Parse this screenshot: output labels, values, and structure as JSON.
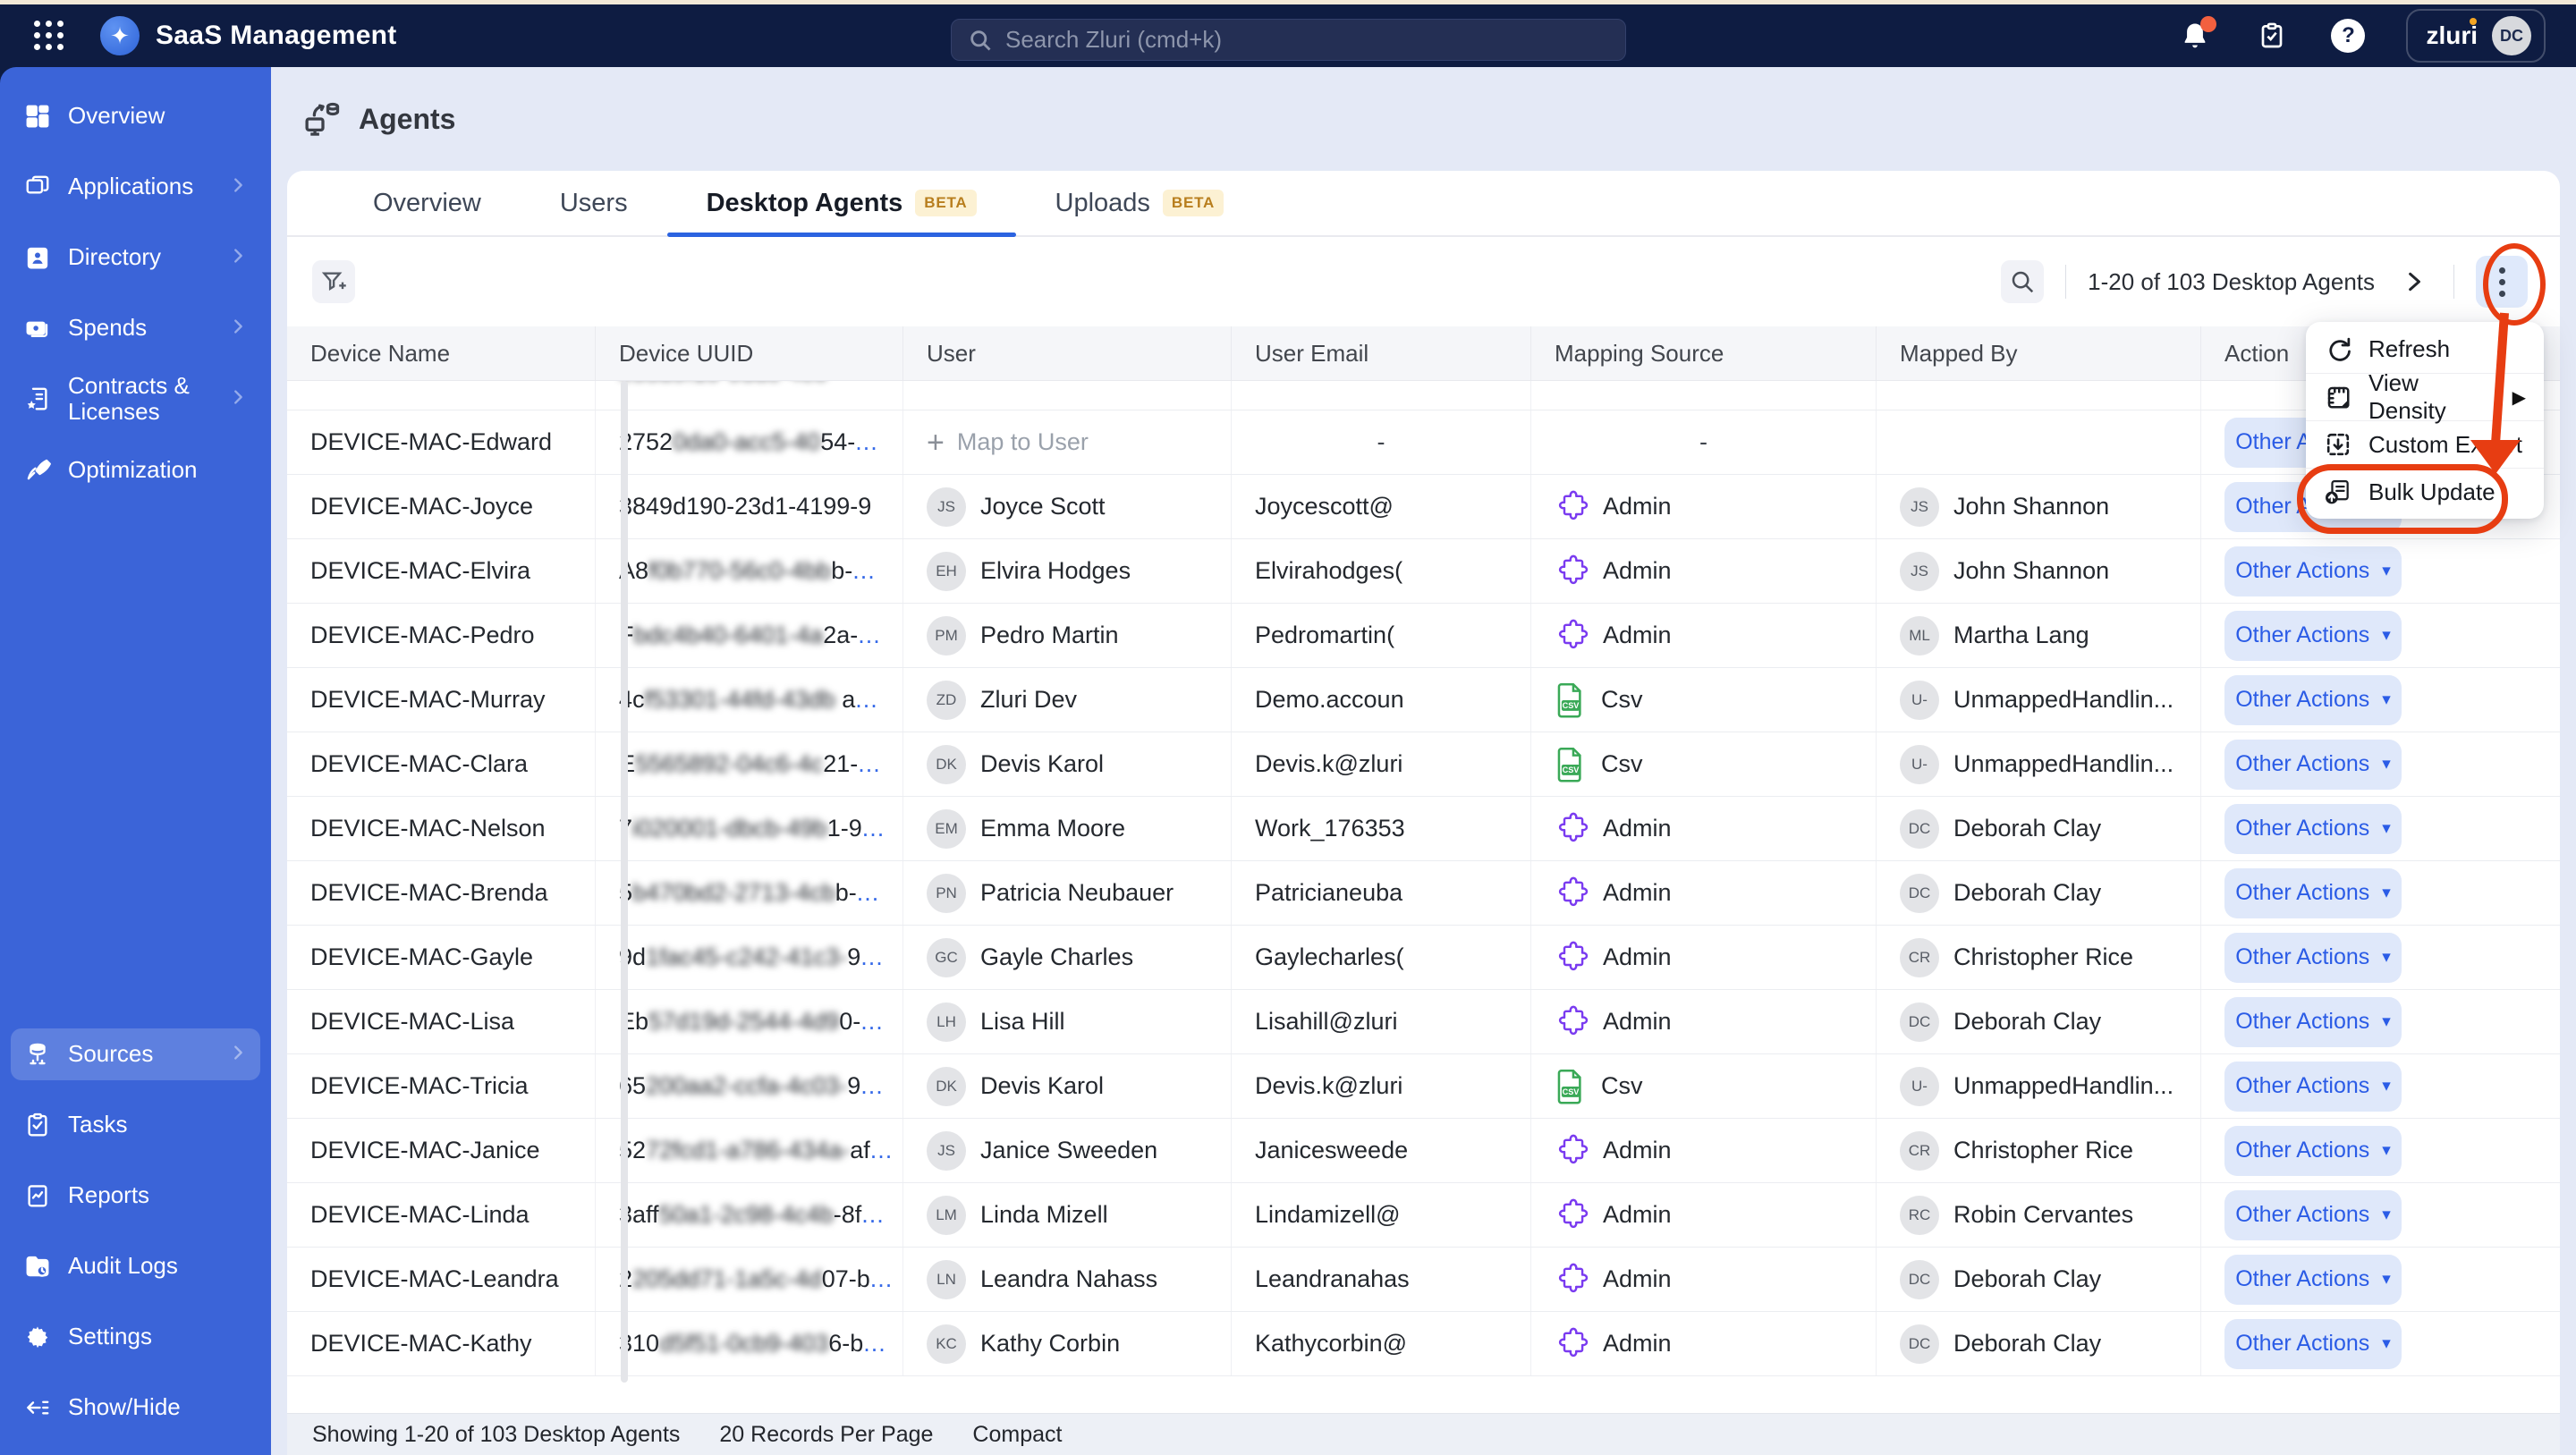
{
  "topbar": {
    "title": "SaaS Management",
    "search_placeholder": "Search Zluri (cmd+k)",
    "org_name": "zluri",
    "avatar_initials": "DC"
  },
  "sidebar": {
    "top_items": [
      {
        "label": "Overview",
        "icon": "overview-icon",
        "chevron": false,
        "active": false
      },
      {
        "label": "Applications",
        "icon": "applications-icon",
        "chevron": true,
        "active": false
      },
      {
        "label": "Directory",
        "icon": "directory-icon",
        "chevron": true,
        "active": false
      },
      {
        "label": "Spends",
        "icon": "spends-icon",
        "chevron": true,
        "active": false
      },
      {
        "label": "Contracts & Licenses",
        "icon": "contracts-icon",
        "chevron": true,
        "active": false
      },
      {
        "label": "Optimization",
        "icon": "optimization-icon",
        "chevron": false,
        "active": false
      }
    ],
    "bottom_items": [
      {
        "label": "Sources",
        "icon": "sources-icon",
        "chevron": true,
        "active": true
      },
      {
        "label": "Tasks",
        "icon": "tasks-icon",
        "chevron": false,
        "active": false
      },
      {
        "label": "Reports",
        "icon": "reports-icon",
        "chevron": false,
        "active": false
      },
      {
        "label": "Audit Logs",
        "icon": "audit-logs-icon",
        "chevron": false,
        "active": false
      },
      {
        "label": "Settings",
        "icon": "settings-icon",
        "chevron": false,
        "active": false
      },
      {
        "label": "Show/Hide",
        "icon": "show-hide-icon",
        "chevron": false,
        "active": false
      }
    ]
  },
  "page": {
    "title": "Agents"
  },
  "tabs": [
    {
      "label": "Overview",
      "beta": false,
      "active": false
    },
    {
      "label": "Users",
      "beta": false,
      "active": false
    },
    {
      "label": "Desktop Agents",
      "beta": true,
      "active": true
    },
    {
      "label": "Uploads",
      "beta": true,
      "active": false
    }
  ],
  "beta_label": "BETA",
  "toolbar": {
    "pagination": "1-20 of 103 Desktop Agents"
  },
  "context_menu": {
    "items": [
      {
        "label": "Refresh",
        "icon": "refresh-icon",
        "submenu": false,
        "highlighted": false
      },
      {
        "label": "View Density",
        "icon": "view-density-icon",
        "submenu": true,
        "highlighted": false
      },
      {
        "label": "Custom Export",
        "icon": "custom-export-icon",
        "submenu": false,
        "highlighted": false
      },
      {
        "label": "Bulk Update",
        "icon": "bulk-update-icon",
        "submenu": false,
        "highlighted": true
      }
    ]
  },
  "table": {
    "columns": [
      "Device Name",
      "Device UUID",
      "User",
      "User Email",
      "Mapping Source",
      "Mapped By",
      "Action"
    ],
    "action_label": "Other Actions",
    "map_to_user_label": "Map to User",
    "rows": [
      {
        "partial": true,
        "device": "",
        "uuid": {
          "pre": "",
          "blur": "e55d9f10-93dc-4c6",
          "post": "",
          "dots": false
        },
        "user": null,
        "email": "",
        "mapping": {
          "kind": "none",
          "label": ""
        },
        "mapped": null,
        "action": false
      },
      {
        "partial": false,
        "device": "DEVICE-MAC-Edward",
        "uuid": {
          "pre": "2752",
          "blur": "0da0-acc5-40",
          "post": "54-",
          "dots": true
        },
        "user": {
          "kind": "map"
        },
        "email": "-",
        "mapping": {
          "kind": "dash",
          "label": "-"
        },
        "mapped": null,
        "action": true
      },
      {
        "partial": false,
        "device": "DEVICE-MAC-Joyce",
        "uuid": {
          "pre": "3849d190-23d1-4199-9",
          "blur": "",
          "post": "",
          "dots": false
        },
        "user": {
          "kind": "user",
          "initials": "JS",
          "name": "Joyce Scott"
        },
        "email": "Joycescott@",
        "mapping": {
          "kind": "admin",
          "label": "Admin"
        },
        "mapped": {
          "initials": "JS",
          "name": "John Shannon"
        },
        "action": true
      },
      {
        "partial": false,
        "device": "DEVICE-MAC-Elvira",
        "uuid": {
          "pre": "A8",
          "blur": "f0b770-56c0-4bb",
          "post": "b-",
          "dots": true
        },
        "user": {
          "kind": "user",
          "initials": "EH",
          "name": "Elvira Hodges"
        },
        "email": "Elvirahodges(",
        "mapping": {
          "kind": "admin",
          "label": "Admin"
        },
        "mapped": {
          "initials": "JS",
          "name": "John Shannon"
        },
        "action": true
      },
      {
        "partial": false,
        "device": "DEVICE-MAC-Pedro",
        "uuid": {
          "pre": "F",
          "blur": "bdc4b40-6401-4a",
          "post": "2a-",
          "dots": true
        },
        "user": {
          "kind": "user",
          "initials": "PM",
          "name": "Pedro Martin"
        },
        "email": "Pedromartin(",
        "mapping": {
          "kind": "admin",
          "label": "Admin"
        },
        "mapped": {
          "initials": "ML",
          "name": "Martha Lang"
        },
        "action": true
      },
      {
        "partial": false,
        "device": "DEVICE-MAC-Murray",
        "uuid": {
          "pre": "4c",
          "blur": "f53301-44fd-43db",
          "post": " a",
          "dots": true
        },
        "user": {
          "kind": "user",
          "initials": "ZD",
          "name": "Zluri Dev"
        },
        "email": "Demo.accoun",
        "mapping": {
          "kind": "csv",
          "label": "Csv"
        },
        "mapped": {
          "initials": "U-",
          "name": "UnmappedHandlin..."
        },
        "action": true
      },
      {
        "partial": false,
        "device": "DEVICE-MAC-Clara",
        "uuid": {
          "pre": "E",
          "blur": "5565892-04c6-4c",
          "post": "21-",
          "dots": true
        },
        "user": {
          "kind": "user",
          "initials": "DK",
          "name": "Devis Karol"
        },
        "email": "Devis.k@zluri",
        "mapping": {
          "kind": "csv",
          "label": "Csv"
        },
        "mapped": {
          "initials": "U-",
          "name": "UnmappedHandlin..."
        },
        "action": true
      },
      {
        "partial": false,
        "device": "DEVICE-MAC-Nelson",
        "uuid": {
          "pre": "7",
          "blur": "i020001-dbcb-49b",
          "post": "1-9",
          "dots": true
        },
        "user": {
          "kind": "user",
          "initials": "EM",
          "name": "Emma Moore"
        },
        "email": "Work_176353",
        "mapping": {
          "kind": "admin",
          "label": "Admin"
        },
        "mapped": {
          "initials": "DC",
          "name": "Deborah Clay"
        },
        "action": true
      },
      {
        "partial": false,
        "device": "DEVICE-MAC-Brenda",
        "uuid": {
          "pre": "5",
          "blur": "b470bd2-2713-4cb",
          "post": "b-",
          "dots": true
        },
        "user": {
          "kind": "user",
          "initials": "PN",
          "name": "Patricia Neubauer"
        },
        "email": "Patricianeuba",
        "mapping": {
          "kind": "admin",
          "label": "Admin"
        },
        "mapped": {
          "initials": "DC",
          "name": "Deborah Clay"
        },
        "action": true
      },
      {
        "partial": false,
        "device": "DEVICE-MAC-Gayle",
        "uuid": {
          "pre": "9d",
          "blur": "1fac45-c242-41c3-",
          "post": "9",
          "dots": true
        },
        "user": {
          "kind": "user",
          "initials": "GC",
          "name": "Gayle Charles"
        },
        "email": "Gaylecharles(",
        "mapping": {
          "kind": "admin",
          "label": "Admin"
        },
        "mapped": {
          "initials": "CR",
          "name": "Christopher Rice"
        },
        "action": true
      },
      {
        "partial": false,
        "device": "DEVICE-MAC-Lisa",
        "uuid": {
          "pre": "Eb",
          "blur": "57d19d-2544-4d9",
          "post": "0-",
          "dots": true
        },
        "user": {
          "kind": "user",
          "initials": "LH",
          "name": "Lisa Hill"
        },
        "email": "Lisahill@zluri",
        "mapping": {
          "kind": "admin",
          "label": "Admin"
        },
        "mapped": {
          "initials": "DC",
          "name": "Deborah Clay"
        },
        "action": true
      },
      {
        "partial": false,
        "device": "DEVICE-MAC-Tricia",
        "uuid": {
          "pre": "65",
          "blur": "200aa2-ccfa-4c03-",
          "post": "9",
          "dots": true
        },
        "user": {
          "kind": "user",
          "initials": "DK",
          "name": "Devis Karol"
        },
        "email": "Devis.k@zluri",
        "mapping": {
          "kind": "csv",
          "label": "Csv"
        },
        "mapped": {
          "initials": "U-",
          "name": "UnmappedHandlin..."
        },
        "action": true
      },
      {
        "partial": false,
        "device": "DEVICE-MAC-Janice",
        "uuid": {
          "pre": "52",
          "blur": "72fcd1-a786-434a-",
          "post": "af",
          "dots": true
        },
        "user": {
          "kind": "user",
          "initials": "JS",
          "name": "Janice Sweeden"
        },
        "email": "Janicesweede",
        "mapping": {
          "kind": "admin",
          "label": "Admin"
        },
        "mapped": {
          "initials": "CR",
          "name": "Christopher Rice"
        },
        "action": true
      },
      {
        "partial": false,
        "device": "DEVICE-MAC-Linda",
        "uuid": {
          "pre": "3aff",
          "blur": "50a1-2c98-4c4b",
          "post": "-8f",
          "dots": true
        },
        "user": {
          "kind": "user",
          "initials": "LM",
          "name": "Linda Mizell"
        },
        "email": "Lindamizell@",
        "mapping": {
          "kind": "admin",
          "label": "Admin"
        },
        "mapped": {
          "initials": "RC",
          "name": "Robin Cervantes"
        },
        "action": true
      },
      {
        "partial": false,
        "device": "DEVICE-MAC-Leandra",
        "uuid": {
          "pre": "2",
          "blur": "205dd71-1a5c-4d",
          "post": "07-b",
          "dots": true
        },
        "user": {
          "kind": "user",
          "initials": "LN",
          "name": "Leandra Nahass"
        },
        "email": "Leandranahas",
        "mapping": {
          "kind": "admin",
          "label": "Admin"
        },
        "mapped": {
          "initials": "DC",
          "name": "Deborah Clay"
        },
        "action": true
      },
      {
        "partial": false,
        "device": "DEVICE-MAC-Kathy",
        "uuid": {
          "pre": "310",
          "blur": "d5f51-0cb9-403",
          "post": "6-b",
          "dots": true
        },
        "user": {
          "kind": "user",
          "initials": "KC",
          "name": "Kathy Corbin"
        },
        "email": "Kathycorbin@",
        "mapping": {
          "kind": "admin",
          "label": "Admin"
        },
        "mapped": {
          "initials": "DC",
          "name": "Deborah Clay"
        },
        "action": true
      }
    ]
  },
  "footer": {
    "showing": "Showing 1-20 of 103 Desktop Agents",
    "per_page": "20 Records Per Page",
    "density": "Compact"
  },
  "colors": {
    "topbar": "#0E1C42",
    "sidebar": "#3B64D8",
    "accent_blue": "#2B63E0",
    "annotation_red": "#E73D12",
    "beta_bg": "#FCF1D3",
    "beta_text": "#B87E1E",
    "admin_purple": "#7A3BF0",
    "csv_green": "#3AA957"
  }
}
